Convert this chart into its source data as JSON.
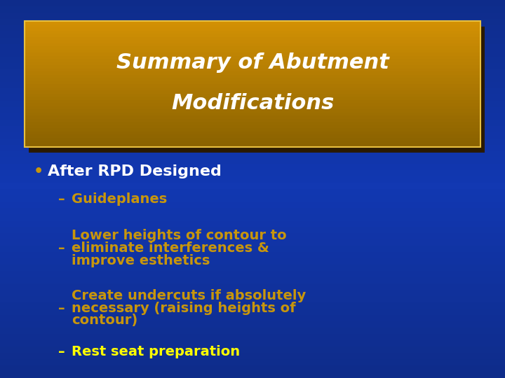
{
  "title_line1": "Summary of Abutment",
  "title_line2": "Modifications",
  "title_text_color": "#ffffff",
  "bullet_color": "#ffffff",
  "bullet_dot_color": "#c8960c",
  "bullet_text": "After RPD Designed",
  "sub_items": [
    "Guideplanes",
    "Lower heights of contour to\neliminate interferences &\nimprove esthetics",
    "Create undercuts if absolutely\nnecessary (raising heights of\ncontour)",
    "Rest seat preparation"
  ],
  "sub_item_colors": [
    "#c8960c",
    "#c8960c",
    "#c8960c",
    "#ffff00"
  ],
  "dash": "–"
}
